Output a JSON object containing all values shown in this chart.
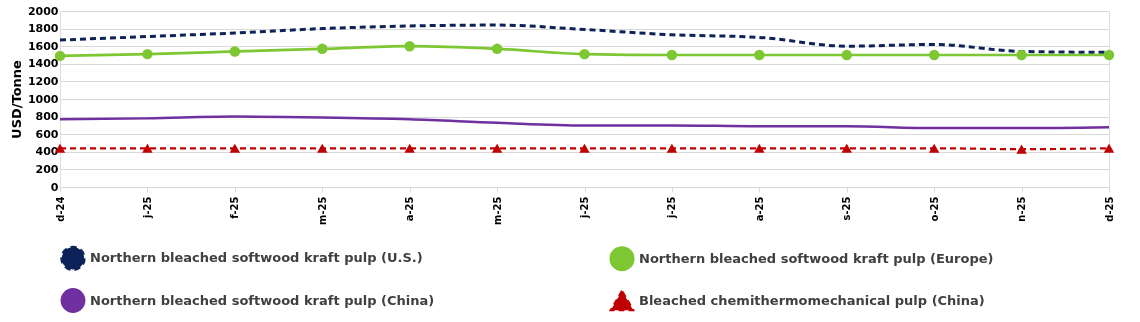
{
  "chart_data": {
    "type": "line",
    "ylabel": "USD/Tonne",
    "categories": [
      "d-24",
      "j-25",
      "f-25",
      "m-25",
      "a-25",
      "m-25",
      "j-25",
      "j-25",
      "a-25",
      "s-25",
      "o-25",
      "n-25",
      "d-25"
    ],
    "series": [
      {
        "name": "Northern bleached softwood kraft pulp (U.S.)",
        "color": "#0d2259",
        "line_style": "dashed",
        "marker": "none",
        "values": [
          1670,
          1710,
          1750,
          1800,
          1830,
          1840,
          1790,
          1730,
          1700,
          1600,
          1620,
          1540,
          1530
        ]
      },
      {
        "name": "Northern bleached softwood kraft pulp (Europe)",
        "color": "#7dc832",
        "line_style": "solid",
        "marker": "circle",
        "values": [
          1490,
          1510,
          1540,
          1570,
          1600,
          1570,
          1510,
          1500,
          1500,
          1500,
          1500,
          1500,
          1500
        ]
      },
      {
        "name": "Northern bleached softwood kraft pulp (China)",
        "color": "#7030a0",
        "line_style": "solid",
        "marker": "none",
        "values": [
          770,
          780,
          800,
          790,
          770,
          730,
          700,
          700,
          690,
          690,
          670,
          670,
          680
        ]
      },
      {
        "name": "Bleached chemithermomechanical pulp (China)",
        "color": "#c00000",
        "line_style": "dashed",
        "marker": "triangle",
        "values": [
          440,
          440,
          440,
          440,
          440,
          440,
          440,
          440,
          440,
          440,
          440,
          430,
          440
        ]
      }
    ],
    "ylim": [
      0,
      2000
    ],
    "yticks": [
      0,
      200,
      400,
      600,
      800,
      1000,
      1200,
      1400,
      1600,
      1800,
      2000
    ],
    "grid": "y",
    "legend": "bottom"
  }
}
